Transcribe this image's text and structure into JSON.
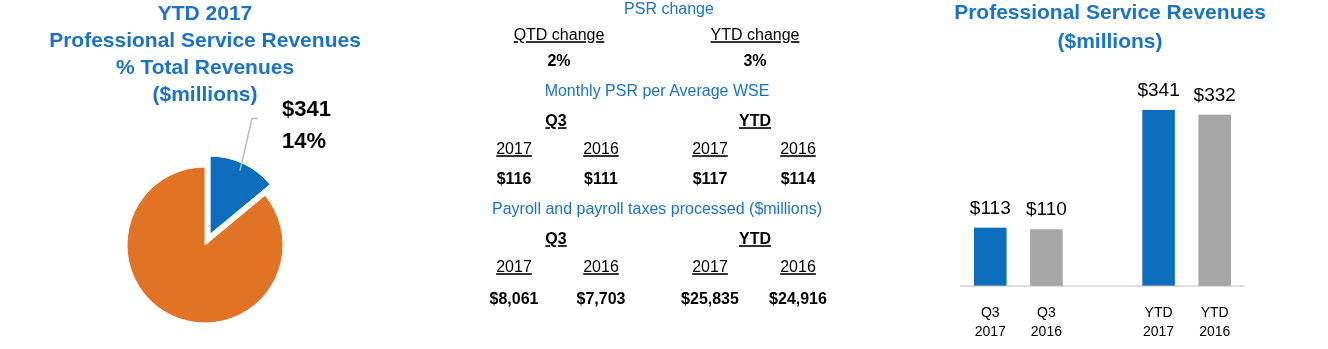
{
  "chart_data": [
    {
      "type": "pie",
      "title": "YTD 2017\nProfessional Service Revenues\n% Total Revenues\n($millions)",
      "categories": [
        null,
        null
      ],
      "values": [
        14,
        86
      ],
      "colors": [
        "#0a6ebd",
        "#e07424"
      ],
      "value_labels": [
        "14%",
        null
      ],
      "annotations": [
        "$341"
      ]
    },
    {
      "type": "other",
      "title": "PSR change",
      "annotations": [
        "QTD change",
        "YTD change",
        "2%",
        "3%",
        "Monthly PSR per Average WSE",
        "Q3",
        "YTD",
        "2017",
        "2016",
        "2017",
        "2016",
        "$116",
        "$111",
        "$117",
        "$114",
        "Payroll and payroll taxes processed ($millions)",
        "Q3",
        "YTD",
        "2017",
        "2016",
        "2017",
        "2016",
        "$8,061",
        "$7,703",
        "$25,835",
        "$24,916"
      ]
    },
    {
      "type": "bar",
      "title": "Professional Service Revenues\n($millions)",
      "categories": [
        "Q3 2017",
        "Q3 2016",
        null,
        "YTD 2017",
        "YTD 2016"
      ],
      "values": [
        113,
        110,
        null,
        341,
        332
      ],
      "colors": [
        "#0a6ebd",
        "#a6a6a6",
        null,
        "#0a6ebd",
        "#a6a6a6"
      ],
      "value_labels": [
        "$113",
        "$110",
        null,
        "$341",
        "$332"
      ]
    }
  ]
}
